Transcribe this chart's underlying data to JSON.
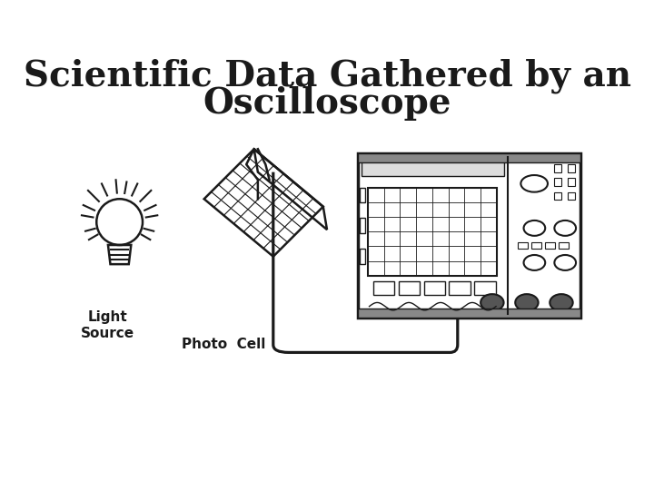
{
  "title_line1": "Scientific Data Gathered by an",
  "title_line2": "Oscilloscope",
  "title_fontsize": 28,
  "title_fontweight": "bold",
  "label_light": "Light\nSource",
  "label_photocell": "Photo  Cell",
  "bg_color": "#ffffff",
  "draw_color": "#1a1a1a",
  "fig_width": 7.2,
  "fig_height": 5.4,
  "dpi": 100
}
